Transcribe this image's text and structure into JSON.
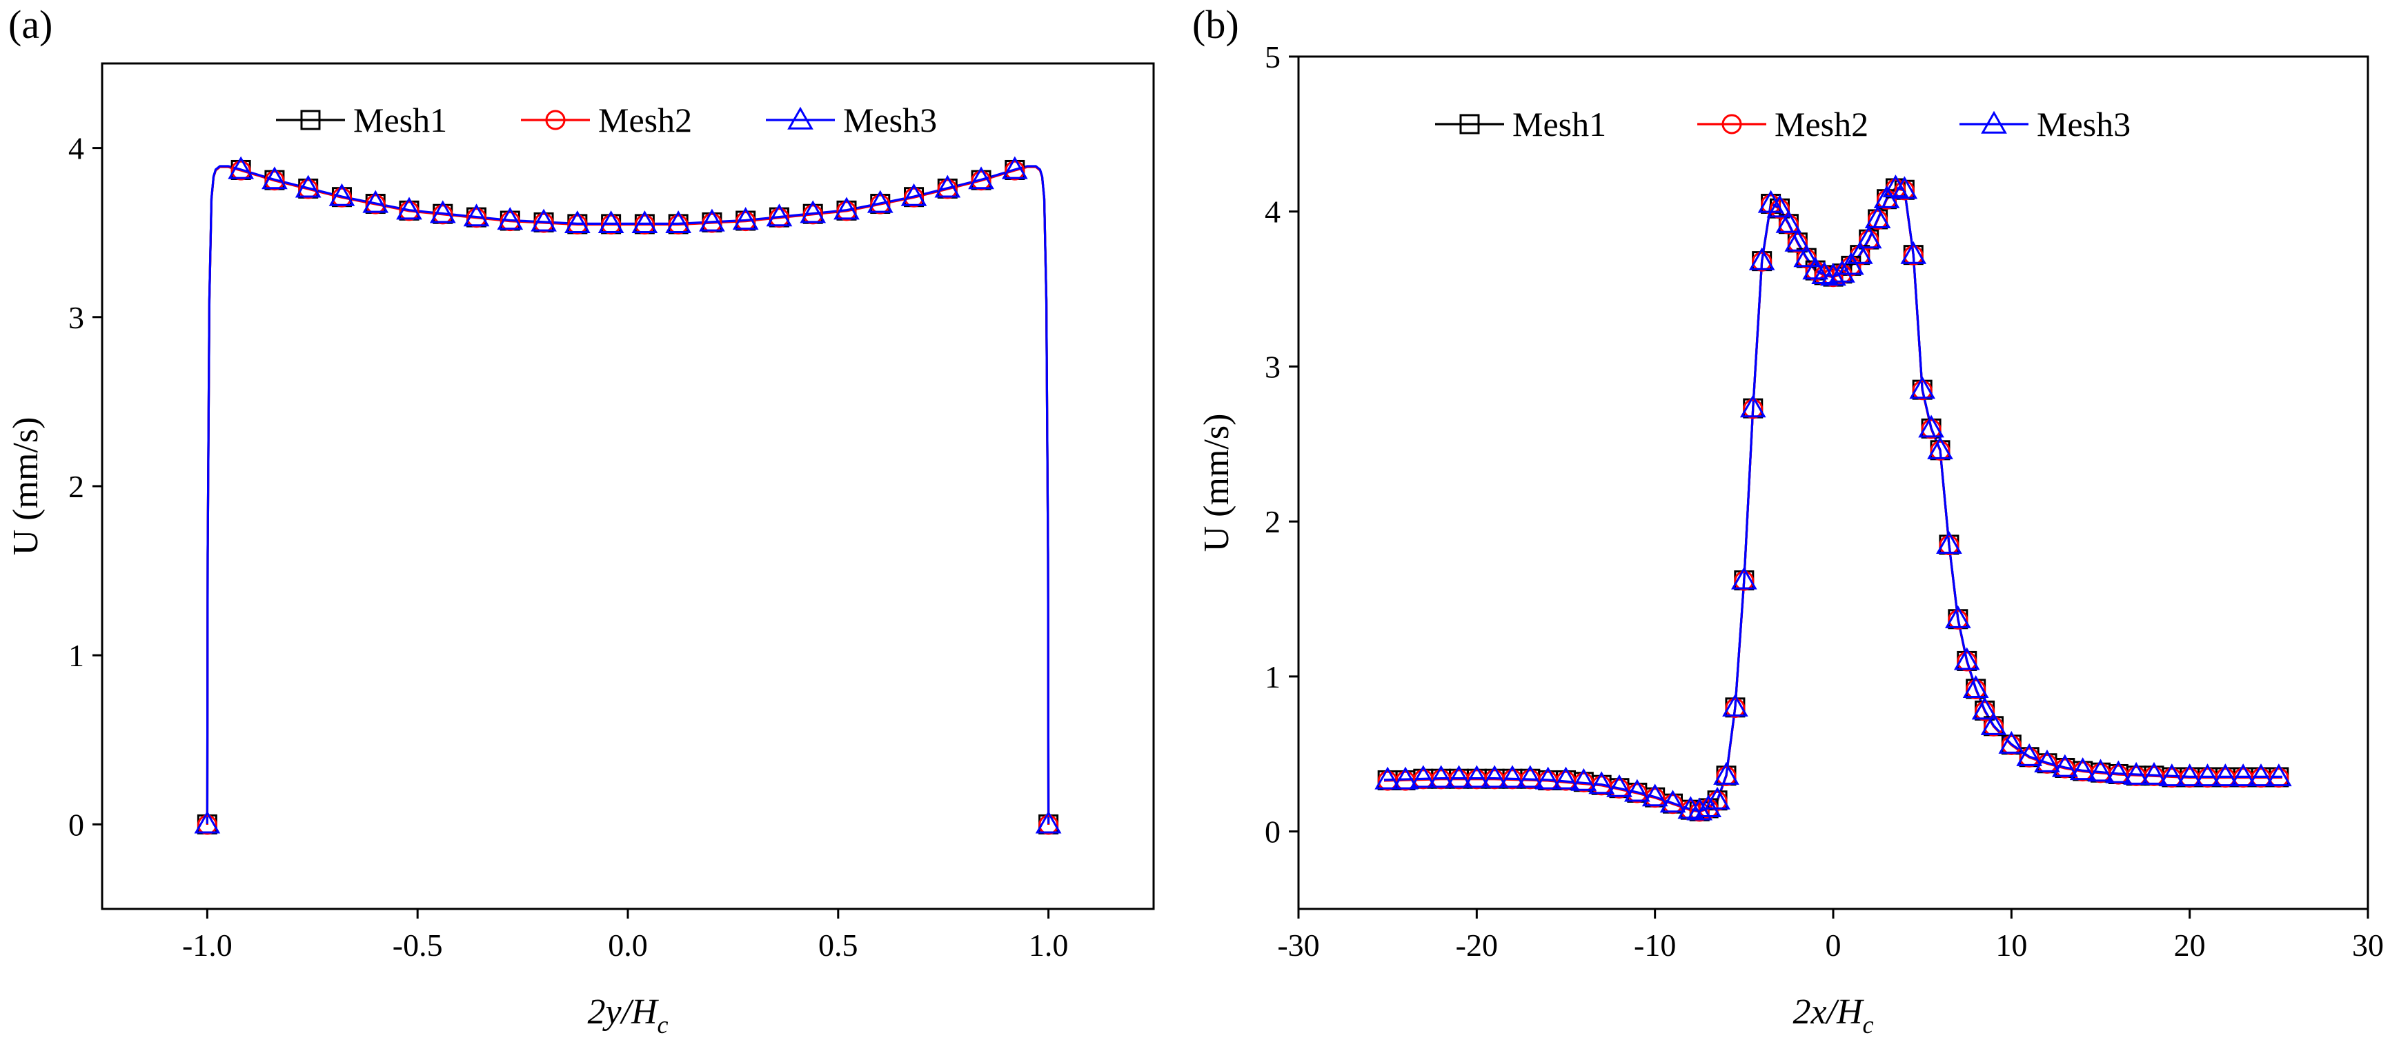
{
  "chart_data": [
    {
      "panel_label": "(a)",
      "type": "line",
      "xlabel": "2y/Hc",
      "ylabel": "U (mm/s)",
      "xlim": [
        -1.25,
        1.25
      ],
      "ylim": [
        -0.5,
        4.5
      ],
      "xticks": [
        -1.0,
        -0.5,
        0.0,
        0.5,
        1.0
      ],
      "yticks": [
        0,
        1,
        2,
        3,
        4
      ],
      "xtick_labels": [
        "-1.0",
        "-0.5",
        "0.0",
        "0.5",
        "1.0"
      ],
      "ytick_labels": [
        "0",
        "1",
        "2",
        "3",
        "4"
      ],
      "legend": {
        "placement": "top-center",
        "entries": [
          "Mesh1",
          "Mesh2",
          "Mesh3"
        ]
      },
      "series": [
        {
          "name": "Mesh1",
          "color": "#000000",
          "marker": "square"
        },
        {
          "name": "Mesh2",
          "color": "#ff0000",
          "marker": "circle"
        },
        {
          "name": "Mesh3",
          "color": "#0000ff",
          "marker": "triangle"
        }
      ],
      "curve": {
        "x": [
          -1.0,
          -0.999,
          -0.995,
          -0.99,
          -0.985,
          -0.98,
          -0.97,
          -0.95,
          -0.92,
          -0.84,
          -0.76,
          -0.68,
          -0.6,
          -0.52,
          -0.44,
          -0.36,
          -0.28,
          -0.2,
          -0.12,
          -0.04,
          0.04,
          0.12,
          0.2,
          0.28,
          0.36,
          0.44,
          0.52,
          0.6,
          0.68,
          0.76,
          0.84,
          0.92,
          0.95,
          0.97,
          0.98,
          0.985,
          0.99,
          0.995,
          0.999,
          1.0
        ],
        "y": [
          0.0,
          1.6,
          3.1,
          3.7,
          3.83,
          3.87,
          3.89,
          3.89,
          3.87,
          3.81,
          3.76,
          3.71,
          3.67,
          3.63,
          3.61,
          3.59,
          3.57,
          3.56,
          3.55,
          3.55,
          3.55,
          3.55,
          3.56,
          3.57,
          3.59,
          3.61,
          3.63,
          3.67,
          3.71,
          3.76,
          3.81,
          3.87,
          3.89,
          3.89,
          3.87,
          3.83,
          3.7,
          3.1,
          1.6,
          0.0
        ]
      },
      "markers": {
        "x": [
          -1.0,
          -0.92,
          -0.84,
          -0.76,
          -0.68,
          -0.6,
          -0.52,
          -0.44,
          -0.36,
          -0.28,
          -0.2,
          -0.12,
          -0.04,
          0.04,
          0.12,
          0.2,
          0.28,
          0.36,
          0.44,
          0.52,
          0.6,
          0.68,
          0.76,
          0.84,
          0.92,
          1.0
        ],
        "y": [
          0.0,
          3.87,
          3.81,
          3.76,
          3.71,
          3.67,
          3.63,
          3.61,
          3.59,
          3.57,
          3.56,
          3.55,
          3.55,
          3.55,
          3.55,
          3.56,
          3.57,
          3.59,
          3.61,
          3.63,
          3.67,
          3.71,
          3.76,
          3.81,
          3.87,
          0.0
        ]
      }
    },
    {
      "panel_label": "(b)",
      "type": "line",
      "xlabel": "2x/Hc",
      "ylabel": "U (mm/s)",
      "xlim": [
        -30,
        30
      ],
      "ylim": [
        -0.5,
        5
      ],
      "xticks": [
        -30,
        -20,
        -10,
        0,
        10,
        20,
        30
      ],
      "yticks": [
        0,
        1,
        2,
        3,
        4,
        5
      ],
      "xtick_labels": [
        "-30",
        "-20",
        "-10",
        "0",
        "10",
        "20",
        "30"
      ],
      "ytick_labels": [
        "0",
        "1",
        "2",
        "3",
        "4",
        "5"
      ],
      "legend": {
        "placement": "top-center",
        "entries": [
          "Mesh1",
          "Mesh2",
          "Mesh3"
        ]
      },
      "series": [
        {
          "name": "Mesh1",
          "color": "#000000",
          "marker": "square"
        },
        {
          "name": "Mesh2",
          "color": "#ff0000",
          "marker": "circle"
        },
        {
          "name": "Mesh3",
          "color": "#0000ff",
          "marker": "triangle"
        }
      ],
      "curve": {
        "x": [
          -25.2,
          -22,
          -19,
          -16,
          -13,
          -11,
          -10,
          -9,
          -8,
          -7.5,
          -7,
          -6.5,
          -6,
          -5.5,
          -5,
          -4.5,
          -4,
          -3.5,
          -3,
          -2.5,
          -2,
          -1.5,
          -1,
          -0.5,
          0,
          0.5,
          1,
          1.5,
          2,
          2.5,
          3,
          3.5,
          4,
          4.5,
          5,
          5.5,
          6,
          6.5,
          7,
          7.5,
          8,
          8.5,
          9,
          10,
          11,
          12,
          13,
          14,
          16,
          18,
          20,
          22,
          25.2
        ],
        "y": [
          0.33,
          0.34,
          0.34,
          0.33,
          0.3,
          0.25,
          0.22,
          0.18,
          0.14,
          0.13,
          0.15,
          0.2,
          0.36,
          0.8,
          1.62,
          2.73,
          3.68,
          4.05,
          4.02,
          3.92,
          3.8,
          3.7,
          3.62,
          3.59,
          3.58,
          3.6,
          3.65,
          3.72,
          3.82,
          3.95,
          4.08,
          4.15,
          4.14,
          3.72,
          2.85,
          2.6,
          2.46,
          1.85,
          1.37,
          1.1,
          0.92,
          0.78,
          0.68,
          0.56,
          0.48,
          0.44,
          0.41,
          0.39,
          0.37,
          0.36,
          0.35,
          0.35,
          0.35
        ]
      },
      "markers": {
        "x": [
          -25,
          -24,
          -23,
          -22,
          -21,
          -20,
          -19,
          -18,
          -17,
          -16,
          -15,
          -14,
          -13,
          -12,
          -11,
          -10,
          -9,
          -8,
          -7.5,
          -7,
          -6.5,
          -6,
          -5.5,
          -5,
          -4.5,
          -4,
          -3.5,
          -3,
          -2.5,
          -2,
          -1.5,
          -1,
          -0.5,
          0,
          0.5,
          1,
          1.5,
          2,
          2.5,
          3,
          3.5,
          4,
          4.5,
          5,
          5.5,
          6,
          6.5,
          7,
          7.5,
          8,
          8.5,
          9,
          10,
          11,
          12,
          13,
          14,
          15,
          16,
          17,
          18,
          19,
          20,
          21,
          22,
          23,
          24,
          25
        ],
        "y": [
          0.33,
          0.33,
          0.34,
          0.34,
          0.34,
          0.34,
          0.34,
          0.34,
          0.34,
          0.33,
          0.33,
          0.32,
          0.3,
          0.28,
          0.25,
          0.22,
          0.18,
          0.14,
          0.13,
          0.15,
          0.2,
          0.36,
          0.8,
          1.62,
          2.73,
          3.68,
          4.05,
          4.02,
          3.92,
          3.8,
          3.7,
          3.62,
          3.59,
          3.58,
          3.6,
          3.65,
          3.72,
          3.82,
          3.95,
          4.08,
          4.15,
          4.14,
          3.72,
          2.85,
          2.6,
          2.46,
          1.85,
          1.37,
          1.1,
          0.92,
          0.78,
          0.68,
          0.56,
          0.48,
          0.44,
          0.41,
          0.39,
          0.38,
          0.37,
          0.36,
          0.36,
          0.35,
          0.35,
          0.35,
          0.35,
          0.35,
          0.35,
          0.35
        ]
      }
    }
  ]
}
